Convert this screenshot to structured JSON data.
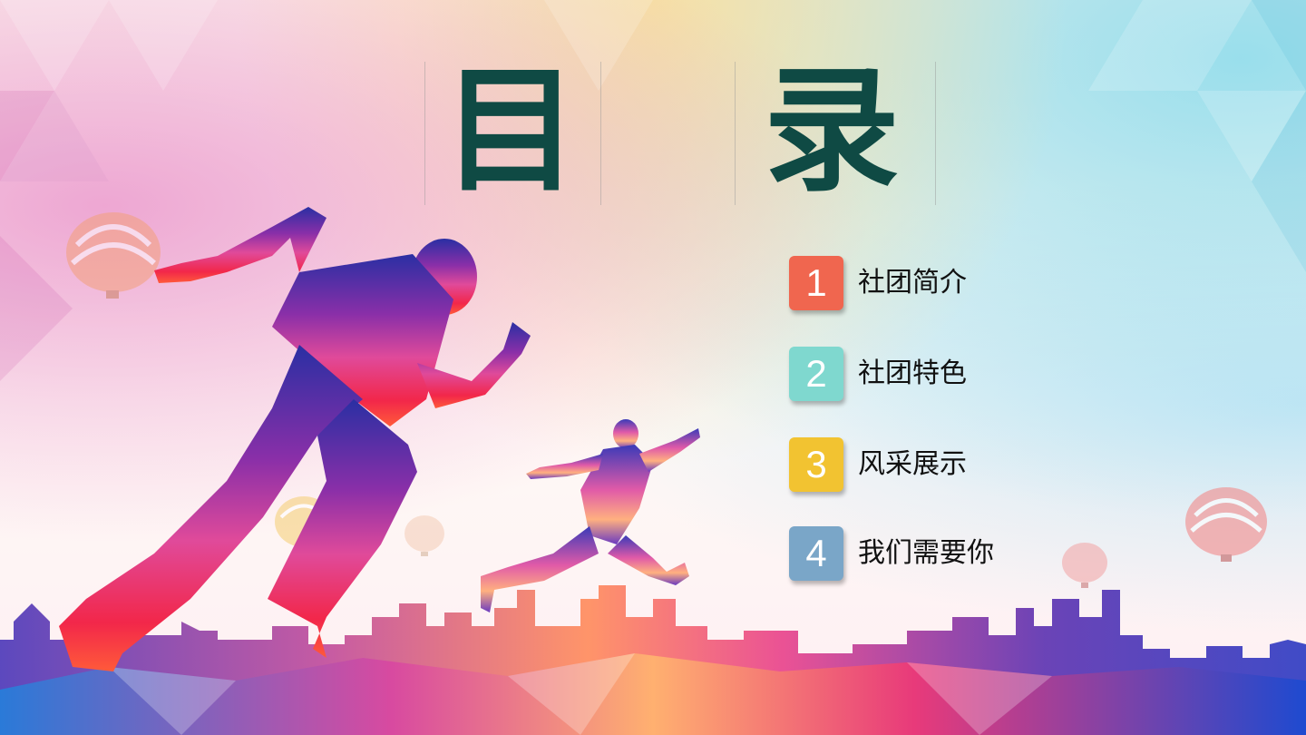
{
  "title": {
    "char1": "目",
    "char2": "录"
  },
  "menu": {
    "items": [
      {
        "number": "1",
        "label": "社团简介",
        "color": "#f0664f"
      },
      {
        "number": "2",
        "label": "社团特色",
        "color": "#7fd8cf"
      },
      {
        "number": "3",
        "label": "风采展示",
        "color": "#f2c331"
      },
      {
        "number": "4",
        "label": "我们需要你",
        "color": "#7aa6c8"
      }
    ]
  },
  "colors": {
    "title": "#0f4a44",
    "runner_top": "#2a2fa3",
    "runner_bottom": "#f2274a",
    "skyline_left": "#4a36b8",
    "skyline_right": "#2b39c2"
  },
  "decor": [
    "running-man-silhouette",
    "jumping-man-silhouette",
    "city-skyline",
    "hot-air-balloon"
  ]
}
